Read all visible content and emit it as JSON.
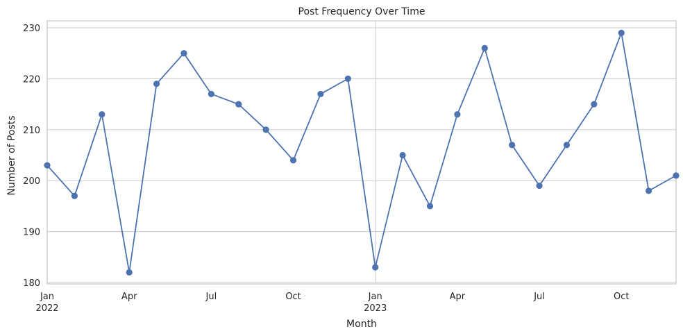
{
  "chart_data": {
    "type": "line",
    "title": "Post Frequency Over Time",
    "xlabel": "Month",
    "ylabel": "Number of Posts",
    "ylim": [
      180,
      230
    ],
    "yticks": [
      180,
      190,
      200,
      210,
      220,
      230
    ],
    "xlim": [
      "2022-01",
      "2023-12"
    ],
    "grid": true,
    "x": [
      "2022-01",
      "2022-02",
      "2022-03",
      "2022-04",
      "2022-05",
      "2022-06",
      "2022-07",
      "2022-08",
      "2022-09",
      "2022-10",
      "2022-11",
      "2022-12",
      "2023-01",
      "2023-02",
      "2023-03",
      "2023-04",
      "2023-05",
      "2023-06",
      "2023-07",
      "2023-08",
      "2023-09",
      "2023-10",
      "2023-11",
      "2023-12"
    ],
    "series": [
      {
        "values": [
          203,
          197,
          213,
          182,
          219,
          225,
          217,
          215,
          210,
          204,
          217,
          220,
          183,
          205,
          195,
          213,
          226,
          207,
          199,
          207,
          215,
          229,
          198,
          201
        ]
      }
    ],
    "x_tick_labels": [
      {
        "month": "2022-01",
        "label": "Jan",
        "year": "2022"
      },
      {
        "month": "2022-04",
        "label": "Apr"
      },
      {
        "month": "2022-07",
        "label": "Jul"
      },
      {
        "month": "2022-10",
        "label": "Oct"
      },
      {
        "month": "2023-01",
        "label": "Jan",
        "year": "2023"
      },
      {
        "month": "2023-04",
        "label": "Apr"
      },
      {
        "month": "2023-07",
        "label": "Jul"
      },
      {
        "month": "2023-10",
        "label": "Oct"
      }
    ],
    "colors": {
      "series": "#4c72b0",
      "grid": "#d3d3d3"
    }
  }
}
